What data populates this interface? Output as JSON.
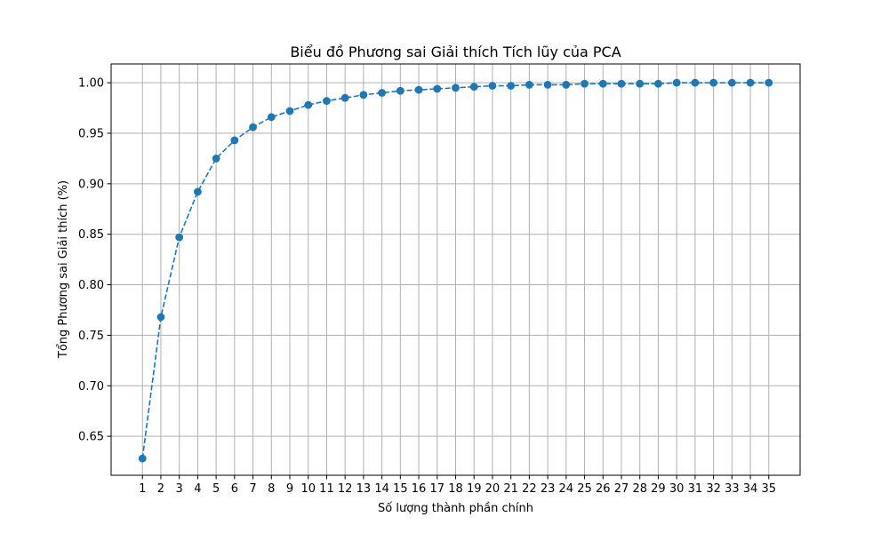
{
  "chart_data": {
    "type": "line",
    "title": "Biểu đồ Phương sai Giải thích Tích lũy của PCA",
    "xlabel": "Số lượng thành phần chính",
    "ylabel": "Tổng Phương sai Giải thích (%)",
    "x": [
      1,
      2,
      3,
      4,
      5,
      6,
      7,
      8,
      9,
      10,
      11,
      12,
      13,
      14,
      15,
      16,
      17,
      18,
      19,
      20,
      21,
      22,
      23,
      24,
      25,
      26,
      27,
      28,
      29,
      30,
      31,
      32,
      33,
      34,
      35
    ],
    "series": [
      {
        "values": [
          0.628,
          0.768,
          0.847,
          0.892,
          0.925,
          0.943,
          0.956,
          0.966,
          0.972,
          0.978,
          0.982,
          0.985,
          0.988,
          0.99,
          0.992,
          0.993,
          0.994,
          0.995,
          0.996,
          0.997,
          0.997,
          0.998,
          0.998,
          0.998,
          0.999,
          0.999,
          0.999,
          0.999,
          0.999,
          1.0,
          1.0,
          1.0,
          1.0,
          1.0,
          1.0
        ],
        "color": "#1f77b4",
        "line_style": "dashed",
        "marker": "circle"
      }
    ],
    "xlim": [
      -0.7,
      36.7
    ],
    "ylim": [
      0.6114,
      1.0186
    ],
    "yticks": [
      0.65,
      0.7,
      0.75,
      0.8,
      0.85,
      0.9,
      0.95,
      1.0
    ],
    "ytick_labels": [
      "0.65",
      "0.70",
      "0.75",
      "0.80",
      "0.85",
      "0.90",
      "0.95",
      "1.00"
    ],
    "grid": true,
    "grid_color": "#b0b0b0",
    "legend": "none"
  }
}
